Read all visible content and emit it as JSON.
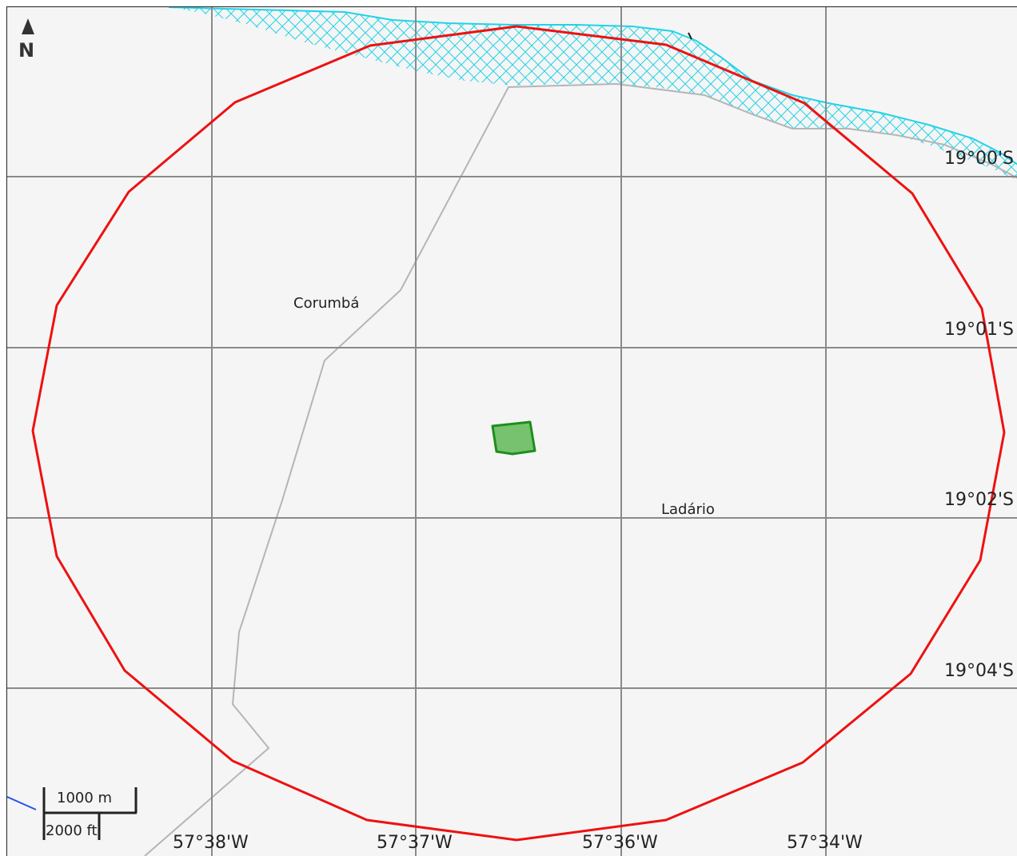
{
  "map": {
    "north_label": "N",
    "places": {
      "corumba": "Corumbá",
      "ladario": "Ladário"
    },
    "latitudes": [
      "19°00'S",
      "19°01'S",
      "19°02'S",
      "19°04'S"
    ],
    "longitudes": [
      "57°38'W",
      "57°37'W",
      "57°36'W",
      "57°34'W"
    ],
    "scale": {
      "metric": "1000 m",
      "imperial": "2000 ft"
    },
    "colors": {
      "buffer_circle": "#ee1111",
      "site_fill": "#77c26e",
      "site_stroke": "#1e8e1e",
      "water_hatch": "#22d3e6",
      "grid": "#8a8a8a",
      "boundary": "#b5b5b5"
    }
  }
}
